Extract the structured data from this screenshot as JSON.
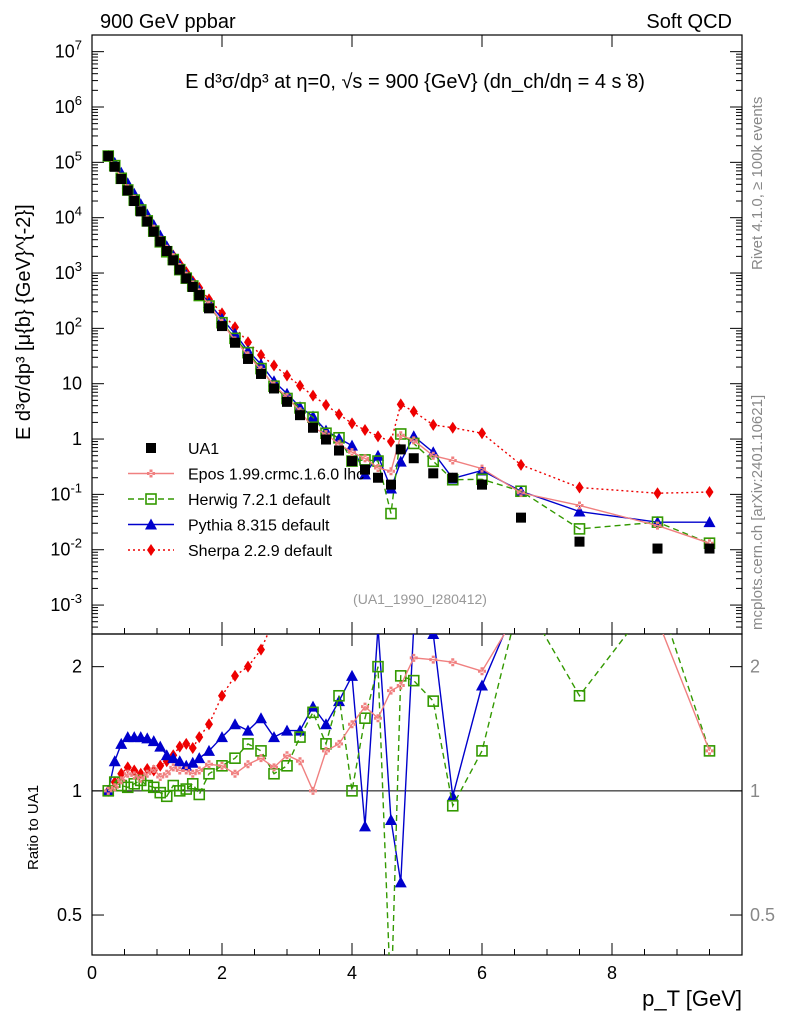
{
  "header": {
    "left": "900 GeV ppbar",
    "right": "Soft QCD",
    "side_top": "Rivet 4.1.0, ≥ 100k events",
    "side_bottom": "mcplots.cern.ch [arXiv:2401.10621]"
  },
  "chart_data": {
    "type": "scatter",
    "title": "E d³σ/dp³ at η=0, √s = 900 {GeV} (dn_ch/dη = 4 s ̇8)",
    "analysis_label": "(UA1_1990_I280412)",
    "xlabel": "p_T [GeV]",
    "ylabel": "E d³σ/dp³ [μ{b} {GeV}^{-2}]",
    "ratio_ylabel": "Ratio to UA1",
    "xlim": [
      0,
      10
    ],
    "ylim": [
      0.0003,
      20000000
    ],
    "ratio_ylim": [
      0.4,
      2.4
    ],
    "xticks": [
      "0",
      "2",
      "4",
      "6",
      "8"
    ],
    "yticks": [
      "10^-3",
      "10^-2",
      "10^-1",
      "1",
      "10",
      "10^2",
      "10^3",
      "10^4",
      "10^5",
      "10^6",
      "10^7"
    ],
    "ratio_yticks": [
      "0.5",
      "1",
      "2"
    ],
    "reference": {
      "name": "UA1",
      "color": "#000000",
      "x": [
        0.25,
        0.35,
        0.45,
        0.55,
        0.65,
        0.75,
        0.85,
        0.95,
        1.05,
        1.15,
        1.25,
        1.35,
        1.45,
        1.55,
        1.65,
        1.8,
        2.0,
        2.2,
        2.4,
        2.6,
        2.8,
        3.0,
        3.2,
        3.4,
        3.6,
        3.8,
        4.0,
        4.2,
        4.4,
        4.6,
        4.75,
        4.95,
        5.25,
        5.55,
        6.0,
        6.6,
        7.5,
        8.7,
        9.5
      ],
      "y": [
        130000,
        83000,
        50000,
        31000,
        20000,
        13000,
        8500,
        5600,
        3700,
        2500,
        1700,
        1150,
        800,
        560,
        400,
        230,
        110,
        55,
        28,
        15,
        8.2,
        4.7,
        2.7,
        1.6,
        0.98,
        0.62,
        0.4,
        0.28,
        0.2,
        0.15,
        0.65,
        0.45,
        0.24,
        0.2,
        0.15,
        0.038,
        0.014,
        0.0105,
        0.0105
      ]
    },
    "series": [
      {
        "name": "Epos 1.99.crmc.1.6.0 lhc",
        "color": "#f08080",
        "marker": "cross",
        "line": "solid",
        "x": [
          0.25,
          0.35,
          0.45,
          0.55,
          0.65,
          0.75,
          0.85,
          0.95,
          1.05,
          1.15,
          1.25,
          1.35,
          1.45,
          1.55,
          1.65,
          1.8,
          2.0,
          2.2,
          2.4,
          2.6,
          2.8,
          3.0,
          3.2,
          3.4,
          3.6,
          3.8,
          4.0,
          4.2,
          4.4,
          4.6,
          4.75,
          4.95,
          5.25,
          5.55,
          6.0,
          6.6,
          7.5,
          8.7,
          9.5
        ],
        "ratio": [
          1.0,
          1.02,
          1.06,
          1.1,
          1.09,
          1.07,
          1.1,
          1.13,
          1.08,
          1.1,
          1.14,
          1.12,
          1.12,
          1.1,
          1.12,
          1.16,
          1.15,
          1.1,
          1.16,
          1.2,
          1.14,
          1.22,
          1.18,
          1.0,
          1.25,
          1.3,
          1.45,
          1.6,
          1.5,
          1.75,
          1.8,
          2.1,
          2.08,
          2.05,
          1.95,
          2.8,
          4.5,
          2.6,
          1.25
        ]
      },
      {
        "name": "Herwig 7.2.1 default",
        "color": "#339900",
        "marker": "open-square",
        "line": "dashed",
        "x": [
          0.25,
          0.35,
          0.45,
          0.55,
          0.65,
          0.75,
          0.85,
          0.95,
          1.05,
          1.15,
          1.25,
          1.35,
          1.45,
          1.55,
          1.65,
          1.8,
          2.0,
          2.2,
          2.4,
          2.6,
          2.8,
          3.0,
          3.2,
          3.4,
          3.6,
          3.8,
          4.0,
          4.2,
          4.4,
          4.6,
          4.75,
          4.95,
          5.25,
          5.55,
          6.0,
          6.6,
          7.5,
          8.7,
          9.5
        ],
        "ratio": [
          1.0,
          1.05,
          1.03,
          1.02,
          1.04,
          1.06,
          1.03,
          1.02,
          0.99,
          0.97,
          1.03,
          1.0,
          1.01,
          1.04,
          0.98,
          1.1,
          1.15,
          1.2,
          1.3,
          1.25,
          1.1,
          1.15,
          1.35,
          1.55,
          1.3,
          1.7,
          1.0,
          1.5,
          2.0,
          0.3,
          1.9,
          1.85,
          1.65,
          0.92,
          1.25,
          3.0,
          1.7,
          3.0,
          1.25
        ]
      },
      {
        "name": "Pythia 8.315 default",
        "color": "#0000cc",
        "marker": "triangle",
        "line": "solid",
        "x": [
          0.25,
          0.35,
          0.45,
          0.55,
          0.65,
          0.75,
          0.85,
          0.95,
          1.05,
          1.15,
          1.25,
          1.35,
          1.45,
          1.55,
          1.65,
          1.8,
          2.0,
          2.2,
          2.4,
          2.6,
          2.8,
          3.0,
          3.2,
          3.4,
          3.6,
          3.8,
          4.0,
          4.2,
          4.4,
          4.6,
          4.75,
          4.95,
          5.25,
          5.55,
          6.0,
          6.6,
          7.5,
          8.7,
          9.5
        ],
        "ratio": [
          1.0,
          1.18,
          1.3,
          1.35,
          1.35,
          1.35,
          1.34,
          1.32,
          1.28,
          1.22,
          1.2,
          1.18,
          1.15,
          1.17,
          1.2,
          1.25,
          1.35,
          1.45,
          1.4,
          1.5,
          1.35,
          1.4,
          1.4,
          1.6,
          1.45,
          1.65,
          1.9,
          0.82,
          2.5,
          0.85,
          0.6,
          2.5,
          2.4,
          0.97,
          1.8,
          3.0,
          3.5,
          3.0,
          3.0
        ]
      },
      {
        "name": "Sherpa 2.2.9 default",
        "color": "#ee0000",
        "marker": "diamond",
        "line": "dotted",
        "x": [
          0.25,
          0.35,
          0.45,
          0.55,
          0.65,
          0.75,
          0.85,
          0.95,
          1.05,
          1.15,
          1.25,
          1.35,
          1.45,
          1.55,
          1.65,
          1.8,
          2.0,
          2.2,
          2.4,
          2.6,
          2.8,
          3.0,
          3.2,
          3.4,
          3.6,
          3.8,
          4.0,
          4.2,
          4.4,
          4.6,
          4.75,
          4.95,
          5.25,
          5.55,
          6.0,
          6.6,
          7.5,
          8.7,
          9.5
        ],
        "ratio": [
          1.0,
          1.05,
          1.1,
          1.14,
          1.12,
          1.1,
          1.13,
          1.12,
          1.15,
          1.18,
          1.22,
          1.28,
          1.3,
          1.27,
          1.35,
          1.45,
          1.7,
          1.9,
          2.0,
          2.2,
          2.6,
          3.0,
          3.4,
          3.8,
          4.2,
          4.5,
          4.8,
          5.2,
          5.6,
          6.0,
          6.5,
          7.0,
          7.5,
          8.0,
          8.5,
          9.0,
          9.5,
          10.0,
          10.5
        ]
      }
    ]
  }
}
